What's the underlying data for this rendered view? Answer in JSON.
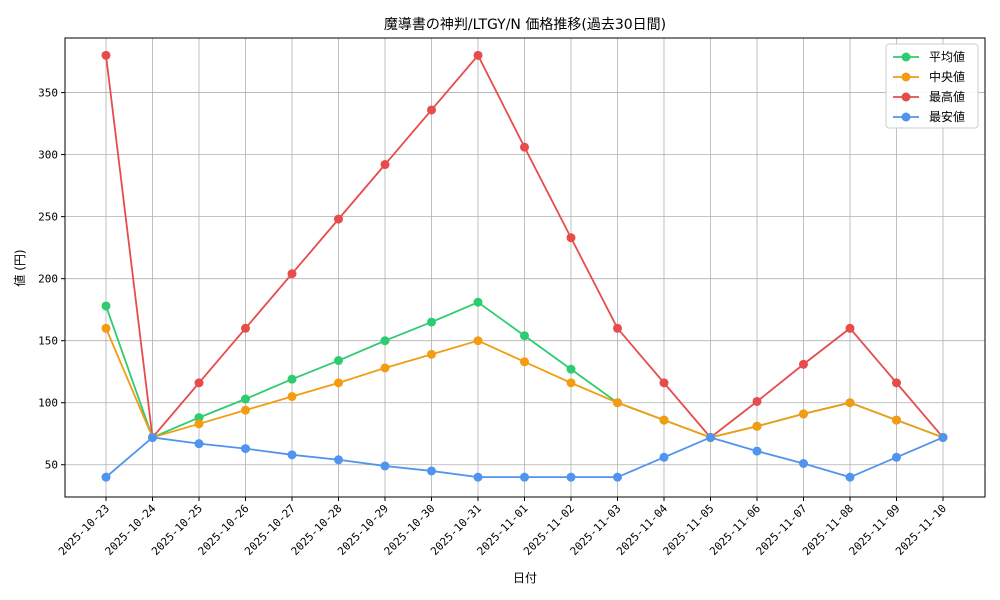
{
  "chart_data": {
    "type": "line",
    "title": "魔導書の神判/LTGY/N 価格推移(過去30日間)",
    "xlabel": "日付",
    "ylabel": "値 (円)",
    "categories": [
      "2025-10-23",
      "2025-10-24",
      "2025-10-25",
      "2025-10-26",
      "2025-10-27",
      "2025-10-28",
      "2025-10-29",
      "2025-10-30",
      "2025-10-31",
      "2025-11-01",
      "2025-11-02",
      "2025-11-03",
      "2025-11-04",
      "2025-11-05",
      "2025-11-06",
      "2025-11-07",
      "2025-11-08",
      "2025-11-09",
      "2025-11-10"
    ],
    "ylim": [
      24,
      394
    ],
    "yticks": [
      50,
      100,
      150,
      200,
      250,
      300,
      350
    ],
    "grid": true,
    "legend_position": "top-right",
    "series": [
      {
        "name": "平均値",
        "color": "#2ecc71",
        "values": [
          178,
          72,
          88,
          103,
          119,
          134,
          150,
          165,
          181,
          154,
          127,
          100,
          86,
          72,
          81,
          91,
          100,
          86,
          72
        ]
      },
      {
        "name": "中央値",
        "color": "#f39c12",
        "values": [
          160,
          72,
          83,
          94,
          105,
          116,
          128,
          139,
          150,
          133,
          116,
          100,
          86,
          72,
          81,
          91,
          100,
          86,
          72
        ]
      },
      {
        "name": "最高値",
        "color": "#e74c4c",
        "values": [
          380,
          72,
          116,
          160,
          204,
          248,
          292,
          336,
          380,
          306,
          233,
          160,
          116,
          72,
          101,
          131,
          160,
          116,
          72
        ]
      },
      {
        "name": "最安値",
        "color": "#4f94ef",
        "values": [
          40,
          72,
          67,
          63,
          58,
          54,
          49,
          45,
          40,
          40,
          40,
          40,
          56,
          72,
          61,
          51,
          40,
          56,
          72
        ]
      }
    ]
  }
}
